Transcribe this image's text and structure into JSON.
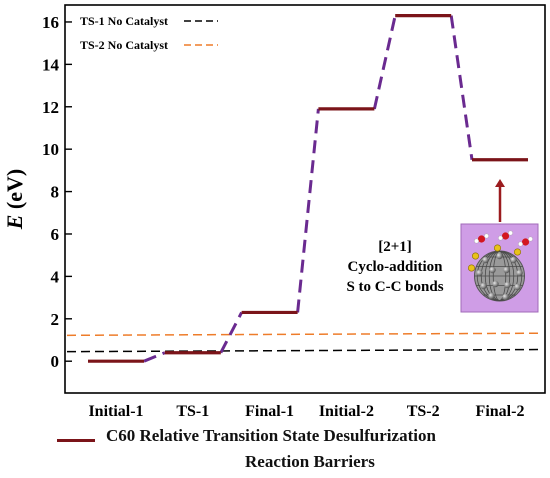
{
  "chart_data": {
    "type": "line",
    "ylabel": "E (eV)",
    "ylabel_italic_part": "E",
    "ylabel_unit_part": " (eV)",
    "ylim": [
      -1.5,
      16.8
    ],
    "yticks": [
      0,
      2,
      4,
      6,
      8,
      10,
      12,
      14,
      16
    ],
    "categories": [
      "Initial-1",
      "TS-1",
      "Final-1",
      "Initial-2",
      "TS-2",
      "Final-2"
    ],
    "series": [
      {
        "name": "C60 Relative Transition State Desulfurization Reaction Barriers",
        "color": "#7b1419",
        "connector_color": "#6a2a90",
        "values": [
          0.0,
          0.4,
          2.3,
          11.9,
          16.3,
          9.5
        ]
      }
    ],
    "reference_lines": [
      {
        "name": "TS-1 No Catalyst",
        "color": "#000000",
        "y_start": 0.45,
        "y_end": 0.55
      },
      {
        "name": "TS-2 No Catalyst",
        "color": "#ee7c2a",
        "y_start": 1.22,
        "y_end": 1.32
      }
    ],
    "annotation": {
      "lines": [
        "[2+1]",
        "Cyclo-addition",
        "S to C-C bonds"
      ]
    },
    "bottom_legend": {
      "line1": "C60 Relative Transition State Desulfurization",
      "line2": "Reaction Barriers"
    }
  }
}
